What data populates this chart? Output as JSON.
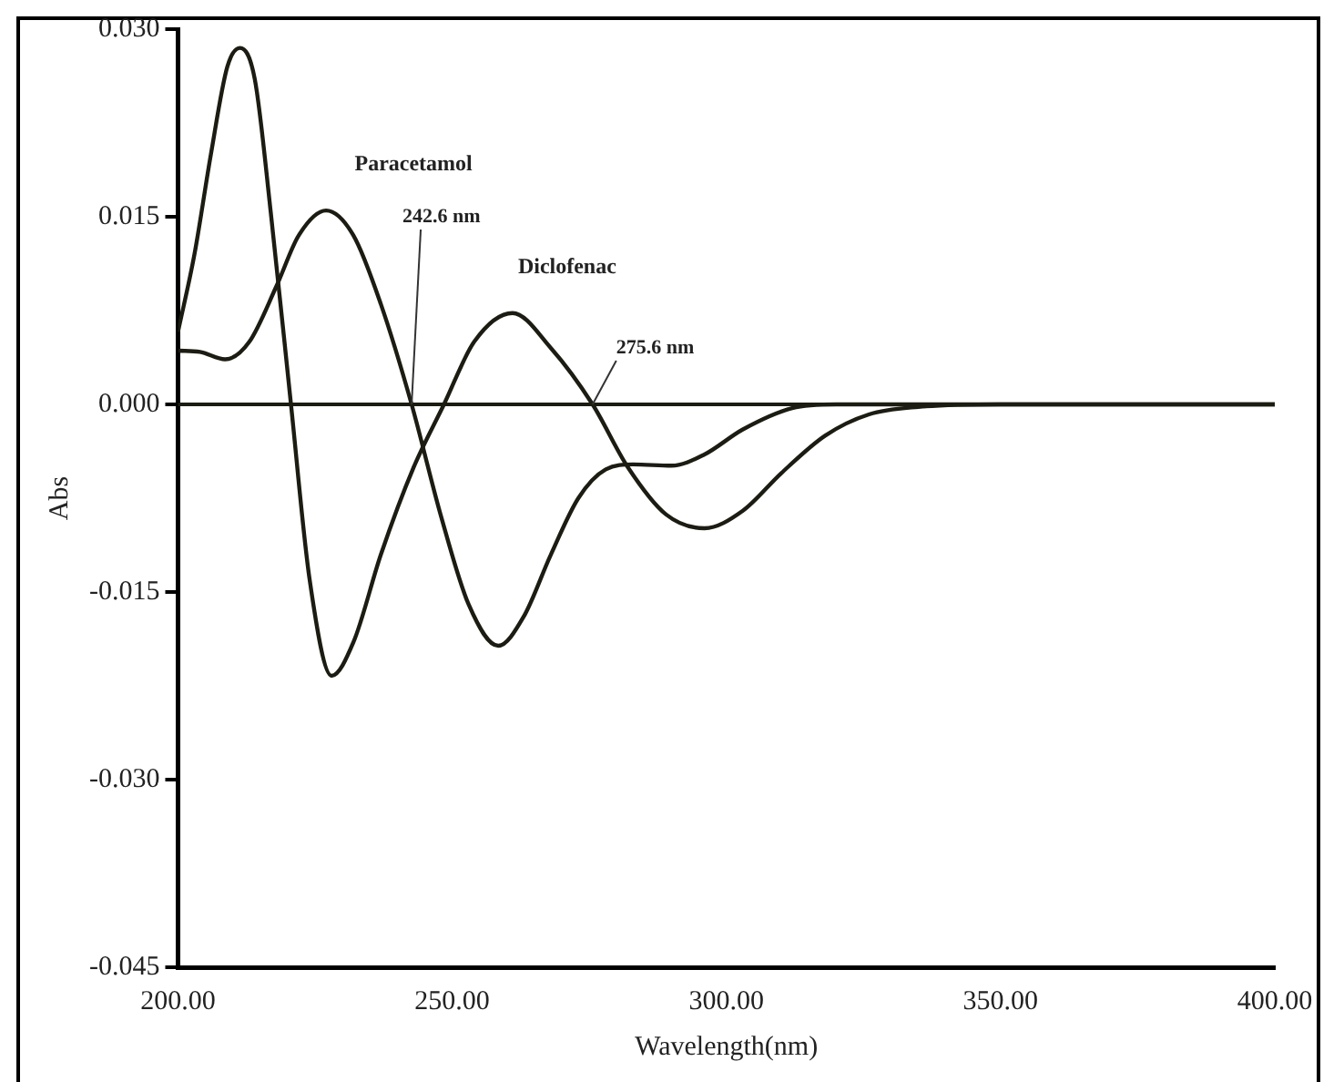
{
  "chart_data": {
    "type": "line",
    "xlabel": "Wavelength(nm)",
    "ylabel": "Abs",
    "series": [
      {
        "name": "Paracetamol",
        "color": "#1c1c12",
        "x": [
          200,
          204,
          208.6,
          213,
          218,
          222,
          227,
          232,
          237,
          242.6,
          248,
          253,
          258.4,
          263,
          268,
          273,
          278,
          283,
          290,
          296,
          303,
          312,
          320,
          400
        ],
        "values": [
          0.0043,
          0.0042,
          0.0036,
          0.005,
          0.0095,
          0.0135,
          0.0155,
          0.0135,
          0.008,
          0,
          -0.009,
          -0.016,
          -0.0193,
          -0.017,
          -0.012,
          -0.0075,
          -0.0052,
          -0.0048,
          -0.0049,
          -0.004,
          -0.002,
          -0.0003,
          0,
          0
        ]
      },
      {
        "name": "Diclofenac",
        "color": "#1c1c12",
        "x": [
          200,
          203,
          206,
          209,
          211.3,
          214,
          217,
          220.6,
          224,
          228,
          232,
          237,
          243,
          248.5,
          254,
          261,
          268,
          275.6,
          282,
          289,
          296,
          303,
          310,
          318,
          326,
          335,
          350,
          400
        ],
        "values": [
          0.0058,
          0.012,
          0.02,
          0.027,
          0.0285,
          0.026,
          0.015,
          0,
          -0.014,
          -0.0217,
          -0.019,
          -0.012,
          -0.005,
          0,
          0.005,
          0.0073,
          0.0045,
          0,
          -0.005,
          -0.0088,
          -0.0099,
          -0.0085,
          -0.0055,
          -0.0025,
          -0.0008,
          -0.0002,
          0,
          0
        ]
      }
    ],
    "xlim": [
      200,
      400
    ],
    "xticks": [
      {
        "value": 200,
        "label": "200.00"
      },
      {
        "value": 250,
        "label": "250.00"
      },
      {
        "value": 300,
        "label": "300.00"
      },
      {
        "value": 350,
        "label": "350.00"
      },
      {
        "value": 400,
        "label": "400.00"
      }
    ],
    "ylim": [
      -0.045,
      0.03
    ],
    "yticks": [
      {
        "value": -0.045,
        "label": "-0.045"
      },
      {
        "value": -0.03,
        "label": "-0.030"
      },
      {
        "value": -0.015,
        "label": "-0.015"
      },
      {
        "value": 0,
        "label": "0.000"
      },
      {
        "value": 0.015,
        "label": "0.015"
      },
      {
        "value": 0.03,
        "label": "0.030"
      }
    ],
    "ref_lines": [
      {
        "axis": "y",
        "value": 0,
        "color": "#1c1c12"
      }
    ],
    "annotations": [
      {
        "text": "242.6 nm",
        "x": 242.6,
        "y": 0
      },
      {
        "text": "275.6 nm",
        "x": 275.6,
        "y": 0
      }
    ],
    "grid": false,
    "legend": false,
    "marker": "none",
    "line_style": "solid"
  }
}
